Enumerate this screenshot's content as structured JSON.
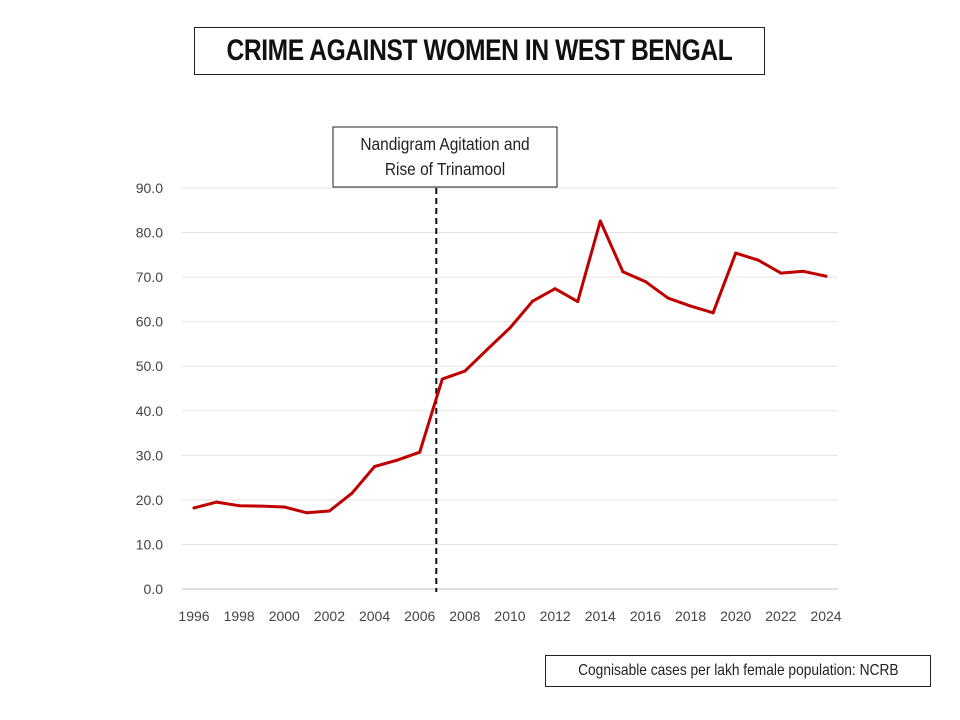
{
  "chart_data": {
    "type": "line",
    "title": "CRIME AGAINST WOMEN IN WEST BENGAL",
    "source": "Cognisable cases per lakh female population: NCRB",
    "xlim": [
      1996,
      2024
    ],
    "ylim": [
      0,
      90
    ],
    "y_ticks": [
      "0.0",
      "10.0",
      "20.0",
      "30.0",
      "40.0",
      "50.0",
      "60.0",
      "70.0",
      "80.0",
      "90.0"
    ],
    "x_ticks": [
      "1996",
      "1998",
      "2000",
      "2002",
      "2004",
      "2006",
      "2008",
      "2010",
      "2012",
      "2014",
      "2016",
      "2018",
      "2020",
      "2022",
      "2024"
    ],
    "grid": true,
    "line_color": "#c00000",
    "x": [
      1996,
      1997,
      1998,
      1999,
      2000,
      2001,
      2002,
      2003,
      2004,
      2005,
      2006,
      2007,
      2008,
      2009,
      2010,
      2011,
      2012,
      2013,
      2014,
      2015,
      2016,
      2017,
      2018,
      2019,
      2020,
      2021,
      2022,
      2023,
      2024
    ],
    "values": [
      18.2,
      19.5,
      18.7,
      18.6,
      18.4,
      17.1,
      17.5,
      21.5,
      27.5,
      28.9,
      30.7,
      47.1,
      48.9,
      53.8,
      58.6,
      64.6,
      67.4,
      64.5,
      82.6,
      71.2,
      69.0,
      65.3,
      63.5,
      62.0,
      75.4,
      73.8,
      70.9,
      71.3,
      70.2
    ],
    "annotation": {
      "x": 2007,
      "line1": "Nandigram Agitation and",
      "line2": "Rise of Trinamool"
    }
  }
}
